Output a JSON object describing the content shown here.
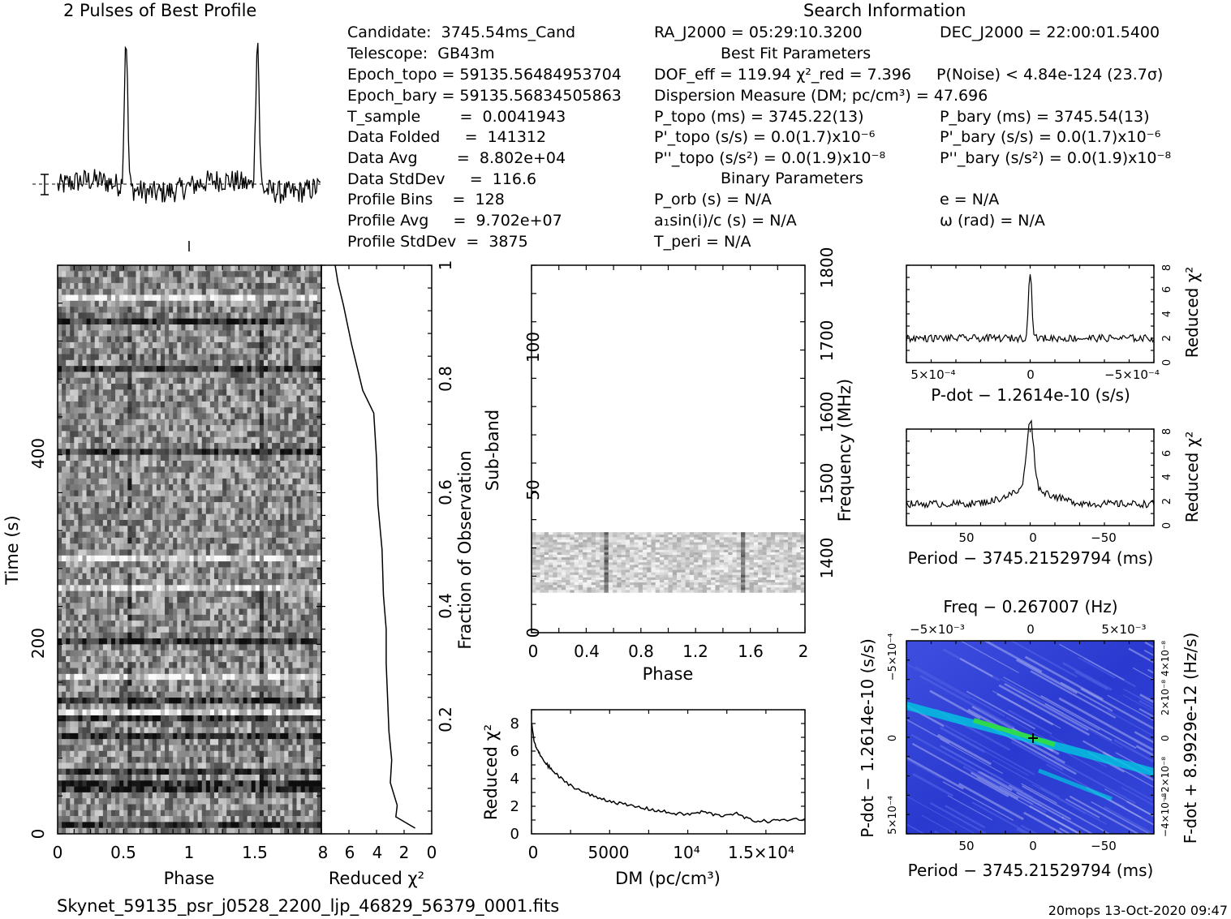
{
  "header": {
    "profile_title": "2 Pulses of Best Profile",
    "search_title": "Search Information",
    "best_fit_title": "Best Fit Parameters",
    "binary_title": "Binary Parameters"
  },
  "info_col1": [
    "Candidate:  3745.54ms_Cand",
    "Telescope:  GB43m",
    "Epoch_topo = 59135.56484953704",
    "Epoch_bary = 59135.56834505863",
    "T_sample        =  0.0041943",
    "Data Folded     =  141312",
    "Data Avg        =  8.802e+04",
    "Data StdDev     =  116.6",
    "Profile Bins    =  128",
    "Profile Avg     =  9.702e+07",
    "Profile StdDev  =  3875"
  ],
  "info_col2": [
    "RA_J2000 = 05:29:10.3200",
    "DOF_eff = 119.94  χ²_red = 7.396",
    "Dispersion Measure (DM; pc/cm³) = 47.696",
    "P_topo (ms) =  3745.22(13)",
    "P'_topo (s/s) = 0.0(1.7)x10⁻⁶",
    "P''_topo (s/s²) = 0.0(1.9)x10⁻⁸",
    "P_orb (s) = N/A",
    "a₁sin(i)/c (s) = N/A",
    "T_peri = N/A"
  ],
  "info_col3": [
    "DEC_J2000 = 22:00:01.5400",
    "P(Noise) < 4.84e-124  (23.7σ)",
    "P_bary (ms) =  3745.54(13)",
    "P'_bary (s/s) = 0.0(1.7)x10⁻⁶",
    "P''_bary (s/s²) = 0.0(1.9)x10⁻⁸",
    "e = N/A",
    "ω (rad) = N/A"
  ],
  "footer": {
    "filename": "Skynet_59135_psr_j0528_2200_ljp_46829_56379_0001.fits",
    "stamp": "20mops 13-Oct-2020 09:47"
  },
  "colors": {
    "ink": "#000000",
    "grid_bg": "#ffffff",
    "ppdot_low": "#2233cc",
    "ppdot_mid": "#00c8e0",
    "ppdot_high": "#30e040"
  },
  "chart_data": [
    {
      "type": "line",
      "name_key": "profile",
      "title": "2 Pulses of Best Profile",
      "xlabel": "",
      "ylabel": "",
      "x_range": [
        0,
        2
      ],
      "pulse_phases": [
        0.52,
        1.52
      ],
      "pulse_peak_relative": 1.0,
      "baseline_relative": 0.15
    },
    {
      "type": "heatmap",
      "name_key": "time_phase",
      "xlabel": "Phase",
      "ylabel": "Time (s)",
      "xlim": [
        0,
        2
      ],
      "ylim": [
        0,
        530
      ],
      "x_ticks": [
        "0",
        "0.5",
        "1",
        "1.5"
      ],
      "y_ticks": [
        "0",
        "200",
        "400"
      ],
      "y_tick_values": [
        0,
        200,
        400
      ]
    },
    {
      "type": "line",
      "name_key": "time_chi2",
      "xlabel": "Reduced χ²",
      "ylabel": "Fraction of Observation",
      "xlim": [
        8,
        0
      ],
      "ylim": [
        0,
        1
      ],
      "x_ticks": [
        "8",
        "6",
        "4",
        "2",
        "0"
      ],
      "y_ticks": [
        "0.2",
        "0.4",
        "0.6",
        "0.8",
        "1"
      ],
      "x": [
        1.2,
        2.6,
        2.5,
        3.0,
        2.9,
        3.1,
        3.2,
        3.3,
        3.3,
        3.5,
        3.6,
        3.9,
        4.0,
        4.2,
        5.0,
        5.8,
        6.4,
        6.8,
        7.0
      ],
      "y": [
        0.01,
        0.03,
        0.05,
        0.09,
        0.13,
        0.18,
        0.24,
        0.3,
        0.36,
        0.42,
        0.5,
        0.58,
        0.66,
        0.74,
        0.78,
        0.86,
        0.93,
        0.97,
        1.0
      ]
    },
    {
      "type": "heatmap",
      "name_key": "subband_phase",
      "xlabel": "Phase",
      "ylabel": "Sub-band",
      "ylabel_right": "Frequency (MHz)",
      "xlim": [
        0,
        2
      ],
      "ylim": [
        0,
        128
      ],
      "x_ticks": [
        "0",
        "0.4",
        "0.8",
        "1.2",
        "1.6",
        "2"
      ],
      "y_ticks": [
        "0",
        "50",
        "100"
      ],
      "y_ticks_right": [
        "1400",
        "1500",
        "1600",
        "1700",
        "1800"
      ],
      "band_rows": [
        14,
        35
      ]
    },
    {
      "type": "line",
      "name_key": "dm_chi2",
      "xlabel": "DM (pc/cm³)",
      "ylabel": "Reduced χ²",
      "xlim": [
        0,
        17500
      ],
      "ylim": [
        0,
        9
      ],
      "x_ticks": [
        "0",
        "5000",
        "10⁴",
        "1.5×10⁴"
      ],
      "x_tick_values": [
        0,
        5000,
        10000,
        15000
      ],
      "y_ticks": [
        "0",
        "2",
        "4",
        "6",
        "8"
      ],
      "x": [
        0,
        200,
        500,
        1000,
        1500,
        2000,
        3000,
        4000,
        5000,
        6000,
        7000,
        8000,
        9000,
        10000,
        11000,
        12000,
        13000,
        14000,
        15000,
        16000,
        17500
      ],
      "y": [
        8.0,
        6.5,
        5.8,
        5.0,
        4.4,
        3.9,
        3.2,
        2.7,
        2.4,
        2.1,
        1.9,
        1.7,
        1.5,
        1.4,
        1.6,
        1.3,
        1.5,
        1.0,
        0.9,
        1.0,
        1.1
      ]
    },
    {
      "type": "line",
      "name_key": "pdot_chi2",
      "xlabel": "P-dot − 1.2614e-10 (s/s)",
      "ylabel": "Reduced χ²",
      "x_ticks": [
        "5×10⁻⁴",
        "0",
        "−5×10⁻⁴"
      ],
      "y_ticks": [
        "0",
        "2",
        "4",
        "6",
        "8"
      ],
      "ylim": [
        0,
        8
      ],
      "baseline": 2.0,
      "peak": 7.4
    },
    {
      "type": "line",
      "name_key": "period_chi2",
      "xlabel": "Period − 3745.21529794 (ms)",
      "ylabel": "Reduced χ²",
      "x_ticks": [
        "50",
        "0",
        "−50"
      ],
      "y_ticks": [
        "0",
        "2",
        "4",
        "6",
        "8"
      ],
      "ylim": [
        0,
        8
      ],
      "baseline": 1.8,
      "peak": 7.6
    },
    {
      "type": "heatmap",
      "name_key": "ppdot_plane",
      "title": "Freq − 0.267007 (Hz)",
      "xlabel": "Period − 3745.21529794 (ms)",
      "ylabel": "P-dot − 1.2614e-10 (s/s)",
      "ylabel_right": "F-dot + 8.9929e-12 (Hz/s)",
      "x_ticks": [
        "50",
        "0",
        "−50"
      ],
      "x_ticks_top": [
        "−5×10⁻³",
        "0",
        "5×10⁻³"
      ],
      "y_ticks": [
        "5×10⁻⁴",
        "0",
        "−5×10⁻⁴"
      ],
      "y_ticks_right": [
        "−4×10⁻⁸",
        "−2×10⁻⁸",
        "0",
        "2×10⁻⁸",
        "4×10⁻⁸"
      ]
    }
  ]
}
